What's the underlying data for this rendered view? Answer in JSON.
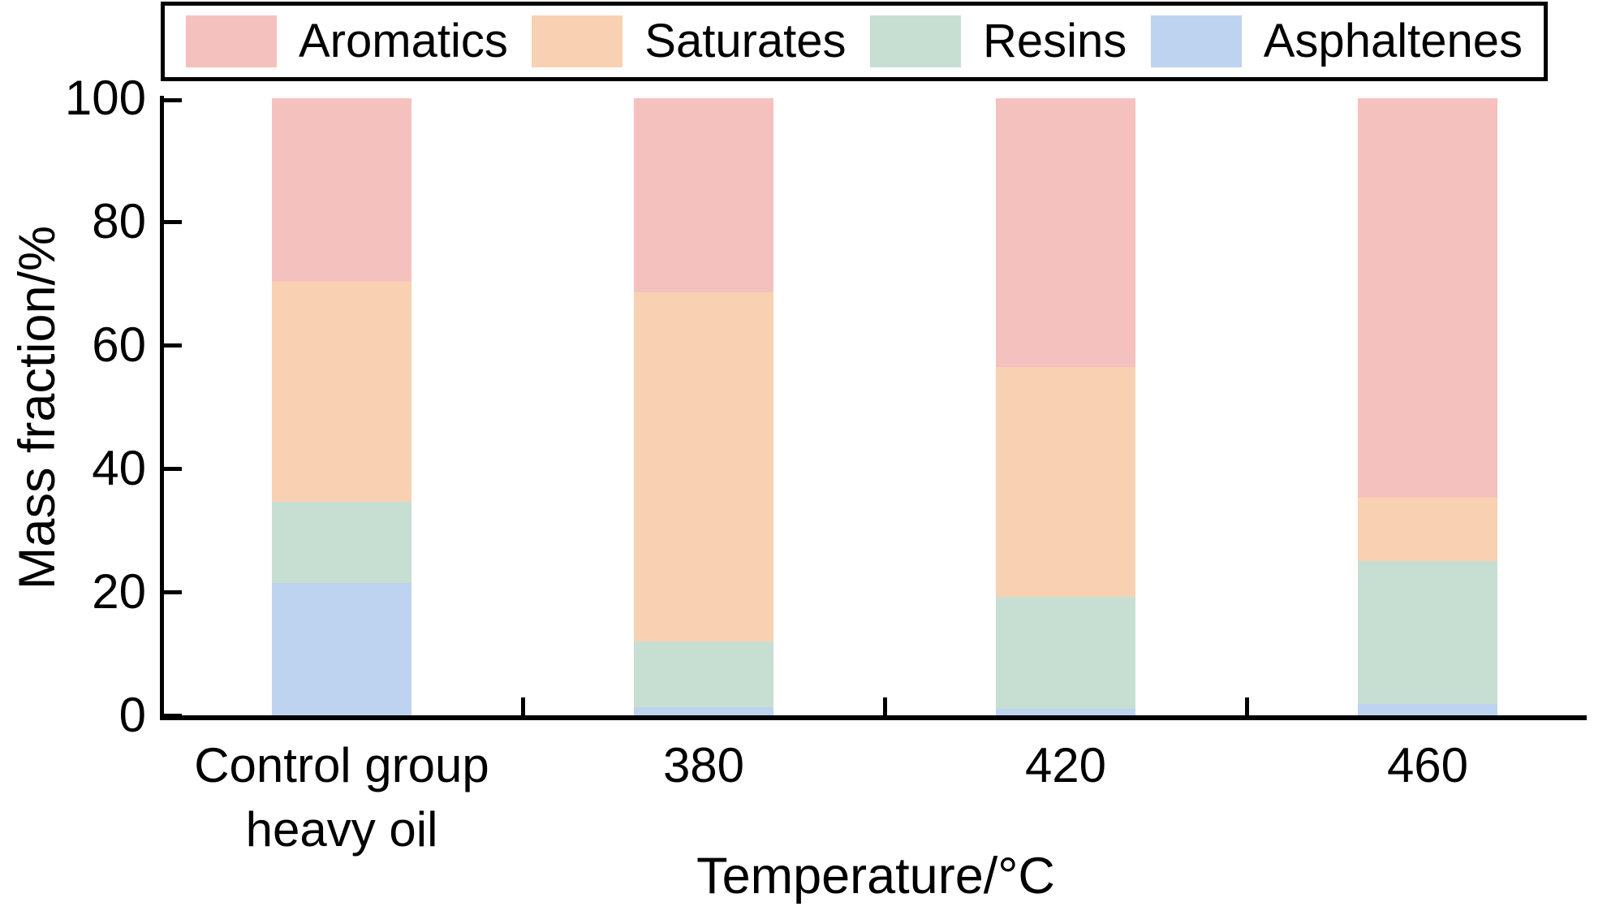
{
  "chart_data": {
    "type": "bar",
    "stacked": true,
    "title": "",
    "xlabel": "Temperature/°C",
    "ylabel": "Mass fraction/%",
    "ylim": [
      0,
      100
    ],
    "yticks": [
      0,
      20,
      40,
      60,
      80,
      100
    ],
    "grid": false,
    "legend_position": "top",
    "legend_order": [
      "Aromatics",
      "Saturates",
      "Resins",
      "Asphaltenes"
    ],
    "categories": [
      "Control group\nheavy oil",
      "380",
      "420",
      "460"
    ],
    "series": [
      {
        "name": "Asphaltenes",
        "color": "#bdd3f0",
        "values": [
          21.4,
          1.3,
          1.1,
          1.9
        ]
      },
      {
        "name": "Resins",
        "color": "#c7dfd3",
        "values": [
          13.2,
          10.7,
          18.1,
          23.1
        ]
      },
      {
        "name": "Saturates",
        "color": "#f8d1b2",
        "values": [
          35.7,
          56.5,
          37.3,
          10.3
        ]
      },
      {
        "name": "Aromatics",
        "color": "#f5c1be",
        "values": [
          29.7,
          31.5,
          43.5,
          64.7
        ]
      }
    ]
  }
}
